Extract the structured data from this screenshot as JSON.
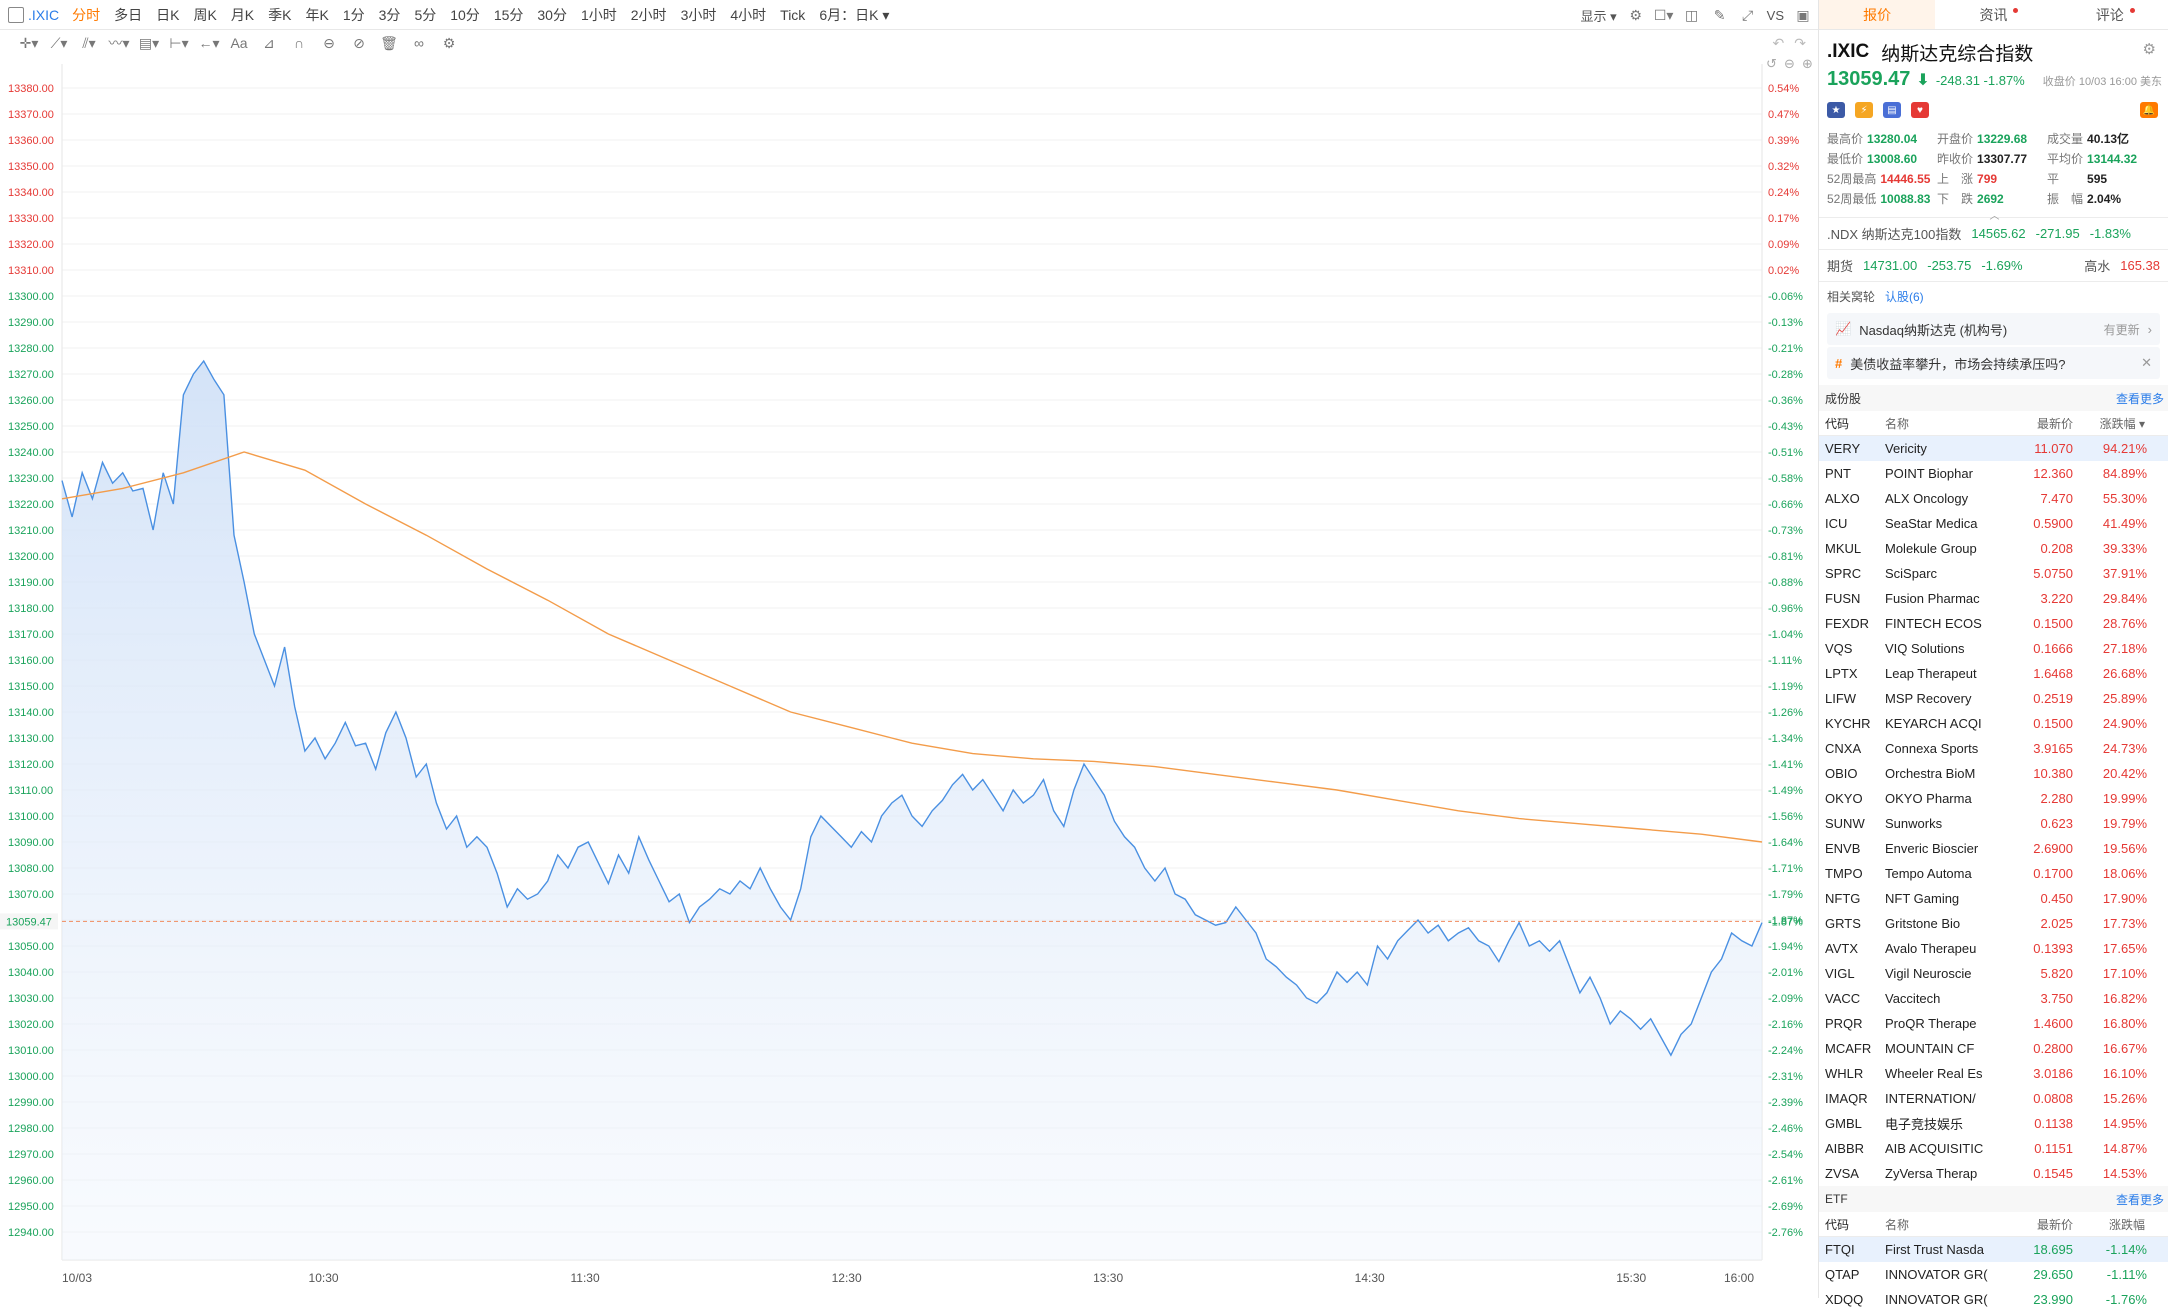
{
  "topbar": {
    "symbol": ".IXIC",
    "periods": [
      "分时",
      "多日",
      "日K",
      "周K",
      "月K",
      "季K",
      "年K",
      "1分",
      "3分",
      "5分",
      "10分",
      "15分",
      "30分",
      "1小时",
      "2小时",
      "3小时",
      "4小时",
      "Tick",
      "6月：日K"
    ],
    "active_period": "分时",
    "display_label": "显示",
    "vs_label": "VS"
  },
  "chart_data": {
    "type": "line",
    "title": "",
    "x_tick_labels": [
      "10/03",
      "10:30",
      "11:30",
      "12:30",
      "13:30",
      "14:30",
      "15:30",
      "16:00"
    ],
    "ylim": [
      12930,
      13385
    ],
    "y_ticks": [
      13380,
      13370,
      13360,
      13350,
      13340,
      13330,
      13320,
      13310,
      13300,
      13290,
      13280,
      13270,
      13260,
      13250,
      13240,
      13230,
      13220,
      13210,
      13200,
      13190,
      13180,
      13170,
      13160,
      13150,
      13140,
      13130,
      13120,
      13110,
      13100,
      13090,
      13080,
      13070,
      13060,
      13050,
      13040,
      13030,
      13020,
      13010,
      13000,
      12990,
      12980,
      12970,
      12960,
      12950,
      12940
    ],
    "pct_ticks": [
      "0.54%",
      "0.47%",
      "0.39%",
      "0.32%",
      "0.24%",
      "0.17%",
      "0.09%",
      "0.02%",
      "-0.06%",
      "-0.13%",
      "-0.21%",
      "-0.28%",
      "-0.36%",
      "-0.43%",
      "-0.51%",
      "-0.58%",
      "-0.66%",
      "-0.73%",
      "-0.81%",
      "-0.88%",
      "-0.96%",
      "-1.04%",
      "-1.11%",
      "-1.19%",
      "-1.26%",
      "-1.34%",
      "-1.41%",
      "-1.49%",
      "-1.56%",
      "-1.64%",
      "-1.71%",
      "-1.79%",
      "-1.87%",
      "-1.94%",
      "-2.01%",
      "-2.09%",
      "-2.16%",
      "-2.24%",
      "-2.31%",
      "-2.39%",
      "-2.46%",
      "-2.54%",
      "-2.61%",
      "-2.69%",
      "-2.76%"
    ],
    "current_price_label": "13059.47",
    "current_pct_label": "-1.87%",
    "series": [
      {
        "color": "#4a90e2",
        "values": [
          13229,
          13215,
          13232,
          13222,
          13236,
          13228,
          13232,
          13225,
          13226,
          13210,
          13232,
          13220,
          13262,
          13270,
          13275,
          13268,
          13262,
          13208,
          13190,
          13170,
          13160,
          13150,
          13165,
          13142,
          13125,
          13130,
          13122,
          13128,
          13136,
          13127,
          13128,
          13118,
          13132,
          13140,
          13130,
          13115,
          13120,
          13105,
          13095,
          13100,
          13088,
          13092,
          13088,
          13078,
          13065,
          13072,
          13068,
          13070,
          13075,
          13085,
          13080,
          13088,
          13090,
          13082,
          13074,
          13085,
          13078,
          13092,
          13083,
          13075,
          13067,
          13070,
          13059,
          13065,
          13068,
          13072,
          13070,
          13075,
          13072,
          13080,
          13072,
          13065,
          13060,
          13072,
          13092,
          13100,
          13096,
          13092,
          13088,
          13094,
          13090,
          13100,
          13105,
          13108,
          13100,
          13096,
          13102,
          13106,
          13112,
          13116,
          13110,
          13114,
          13108,
          13102,
          13110,
          13105,
          13108,
          13114,
          13102,
          13096,
          13110,
          13120,
          13114,
          13108,
          13098,
          13092,
          13088,
          13080,
          13075,
          13080,
          13070,
          13068,
          13062,
          13060,
          13058,
          13059,
          13065,
          13060,
          13055,
          13045,
          13042,
          13038,
          13035,
          13030,
          13028,
          13032,
          13040,
          13036,
          13040,
          13035,
          13050,
          13045,
          13052,
          13056,
          13060,
          13055,
          13058,
          13052,
          13055,
          13057,
          13052,
          13050,
          13044,
          13052,
          13059,
          13050,
          13052,
          13048,
          13052,
          13042,
          13032,
          13038,
          13030,
          13020,
          13025,
          13022,
          13018,
          13022,
          13015,
          13008,
          13016,
          13020,
          13030,
          13040,
          13045,
          13055,
          13052,
          13050,
          13059
        ]
      },
      {
        "color": "#f39c4a",
        "values": [
          13222,
          13226,
          13232,
          13240,
          13233,
          13220,
          13208,
          13195,
          13183,
          13170,
          13160,
          13150,
          13140,
          13134,
          13128,
          13124,
          13122,
          13121,
          13119,
          13116,
          13113,
          13110,
          13106,
          13102,
          13099,
          13097,
          13095,
          13093,
          13090
        ]
      }
    ]
  },
  "panel": {
    "tabs": [
      {
        "label": "报价"
      },
      {
        "label": "资讯"
      },
      {
        "label": "评论"
      }
    ],
    "symbol": ".IXIC",
    "name": "纳斯达克综合指数",
    "price": "13059.47",
    "change": "-248.31",
    "change_pct": "-1.87%",
    "close_time": "收盘价 10/03 16:00 美东",
    "stats": [
      {
        "label": "最高价",
        "value": "13280.04",
        "color": "green"
      },
      {
        "label": "开盘价",
        "value": "13229.68",
        "color": "green"
      },
      {
        "label": "成交量",
        "value": "40.13亿",
        "color": "black"
      },
      {
        "label": "最低价",
        "value": "13008.60",
        "color": "green"
      },
      {
        "label": "昨收价",
        "value": "13307.77",
        "color": "black"
      },
      {
        "label": "平均价",
        "value": "13144.32",
        "color": "green"
      },
      {
        "label": "52周最高",
        "value": "14446.55",
        "color": "red"
      },
      {
        "label": "上　涨",
        "value": "799",
        "color": "red"
      },
      {
        "label": "平　　",
        "value": "595",
        "color": "black"
      },
      {
        "label": "52周最低",
        "value": "10088.83",
        "color": "green"
      },
      {
        "label": "下　跌",
        "value": "2692",
        "color": "green"
      },
      {
        "label": "振　幅",
        "value": "2.04%",
        "color": "black"
      }
    ],
    "ndx": {
      "symbol": ".NDX 纳斯达克100指数",
      "price": "14565.62",
      "change": "-271.95",
      "pct": "-1.83%"
    },
    "futures": {
      "label": "期货",
      "price": "14731.00",
      "change": "-253.75",
      "pct": "-1.69%",
      "premium_label": "高水",
      "premium": "165.38"
    },
    "related": {
      "label": "相关窝轮",
      "link": "认股(6)"
    },
    "notice1": {
      "text": "Nasdaq纳斯达克 (机构号)",
      "extra": "有更新"
    },
    "notice2": {
      "text": "美债收益率攀升，市场会持续承压吗?"
    },
    "components": {
      "title": "成份股",
      "more": "查看更多",
      "headers": [
        "代码",
        "名称",
        "最新价",
        "涨跌幅"
      ],
      "rows": [
        {
          "code": "VERY",
          "name": "Vericity",
          "price": "11.070",
          "pct": "94.21%"
        },
        {
          "code": "PNT",
          "name": "POINT Biophar",
          "price": "12.360",
          "pct": "84.89%"
        },
        {
          "code": "ALXO",
          "name": "ALX Oncology",
          "price": "7.470",
          "pct": "55.30%"
        },
        {
          "code": "ICU",
          "name": "SeaStar Medica",
          "price": "0.5900",
          "pct": "41.49%"
        },
        {
          "code": "MKUL",
          "name": "Molekule Group",
          "price": "0.208",
          "pct": "39.33%"
        },
        {
          "code": "SPRC",
          "name": "SciSparc",
          "price": "5.0750",
          "pct": "37.91%"
        },
        {
          "code": "FUSN",
          "name": "Fusion Pharmac",
          "price": "3.220",
          "pct": "29.84%"
        },
        {
          "code": "FEXDR",
          "name": "FINTECH ECOS",
          "price": "0.1500",
          "pct": "28.76%"
        },
        {
          "code": "VQS",
          "name": "VIQ Solutions",
          "price": "0.1666",
          "pct": "27.18%"
        },
        {
          "code": "LPTX",
          "name": "Leap Therapeut",
          "price": "1.6468",
          "pct": "26.68%"
        },
        {
          "code": "LIFW",
          "name": "MSP Recovery",
          "price": "0.2519",
          "pct": "25.89%"
        },
        {
          "code": "KYCHR",
          "name": "KEYARCH ACQI",
          "price": "0.1500",
          "pct": "24.90%"
        },
        {
          "code": "CNXA",
          "name": "Connexa Sports",
          "price": "3.9165",
          "pct": "24.73%"
        },
        {
          "code": "OBIO",
          "name": "Orchestra BioM",
          "price": "10.380",
          "pct": "20.42%"
        },
        {
          "code": "OKYO",
          "name": "OKYO Pharma",
          "price": "2.280",
          "pct": "19.99%"
        },
        {
          "code": "SUNW",
          "name": "Sunworks",
          "price": "0.623",
          "pct": "19.79%"
        },
        {
          "code": "ENVB",
          "name": "Enveric Bioscier",
          "price": "2.6900",
          "pct": "19.56%"
        },
        {
          "code": "TMPO",
          "name": "Tempo Automa",
          "price": "0.1700",
          "pct": "18.06%"
        },
        {
          "code": "NFTG",
          "name": "NFT Gaming",
          "price": "0.450",
          "pct": "17.90%"
        },
        {
          "code": "GRTS",
          "name": "Gritstone Bio",
          "price": "2.025",
          "pct": "17.73%"
        },
        {
          "code": "AVTX",
          "name": "Avalo Therapeu",
          "price": "0.1393",
          "pct": "17.65%"
        },
        {
          "code": "VIGL",
          "name": "Vigil Neuroscie",
          "price": "5.820",
          "pct": "17.10%"
        },
        {
          "code": "VACC",
          "name": "Vaccitech",
          "price": "3.750",
          "pct": "16.82%"
        },
        {
          "code": "PRQR",
          "name": "ProQR Therape",
          "price": "1.4600",
          "pct": "16.80%"
        },
        {
          "code": "MCAFR",
          "name": "MOUNTAIN CF",
          "price": "0.2800",
          "pct": "16.67%"
        },
        {
          "code": "WHLR",
          "name": "Wheeler Real Es",
          "price": "3.0186",
          "pct": "16.10%"
        },
        {
          "code": "IMAQR",
          "name": "INTERNATION/",
          "price": "0.0808",
          "pct": "15.26%"
        },
        {
          "code": "GMBL",
          "name": "电子竞技娱乐",
          "price": "0.1138",
          "pct": "14.95%"
        },
        {
          "code": "AIBBR",
          "name": "AIB ACQUISITIC",
          "price": "0.1151",
          "pct": "14.87%"
        },
        {
          "code": "ZVSA",
          "name": "ZyVersa Therap",
          "price": "0.1545",
          "pct": "14.53%"
        }
      ]
    },
    "etf": {
      "title": "ETF",
      "more": "查看更多",
      "headers": [
        "代码",
        "名称",
        "最新价",
        "涨跌幅"
      ],
      "rows": [
        {
          "code": "FTQI",
          "name": "First Trust Nasda",
          "price": "18.695",
          "pct": "-1.14%"
        },
        {
          "code": "QTAP",
          "name": "INNOVATOR GR(",
          "price": "29.650",
          "pct": "-1.11%"
        },
        {
          "code": "XDQQ",
          "name": "INNOVATOR GR(",
          "price": "23.990",
          "pct": "-1.76%"
        }
      ]
    }
  }
}
